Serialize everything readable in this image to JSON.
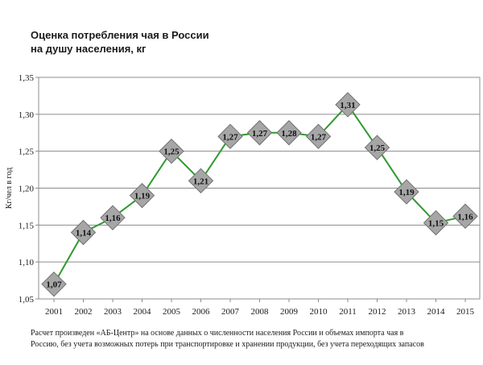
{
  "chart_data": {
    "type": "line",
    "title_line1": "Оценка потребления  чая в России",
    "title_line2": "на душу  населения, кг",
    "xlabel": "",
    "ylabel": "Кг/чел в год",
    "ylim": [
      1.05,
      1.35
    ],
    "yticks": [
      "1,05",
      "1,10",
      "1,15",
      "1,20",
      "1,25",
      "1,30",
      "1,35"
    ],
    "ytick_values": [
      1.05,
      1.1,
      1.15,
      1.2,
      1.25,
      1.3,
      1.35
    ],
    "categories": [
      "2001",
      "2002",
      "2003",
      "2004",
      "2005",
      "2006",
      "2007",
      "2008",
      "2009",
      "2010",
      "2011",
      "2012",
      "2013",
      "2014",
      "2015"
    ],
    "values": [
      1.07,
      1.14,
      1.16,
      1.19,
      1.25,
      1.21,
      1.27,
      1.275,
      1.275,
      1.27,
      1.313,
      1.255,
      1.195,
      1.153,
      1.162
    ],
    "labels": [
      "1,07",
      "1,14",
      "1,16",
      "1,19",
      "1,25",
      "1,21",
      "1,27",
      "1,27",
      "1,28",
      "1,27",
      "1,31",
      "1,25",
      "1,19",
      "1,15",
      "1,16"
    ],
    "grid": "horizontal",
    "line_color": "#2e9a2e",
    "marker_color": "#a6a6a6",
    "note_line1": "Расчет произведен «АБ-Центр» на основе данных о численности населения России и объемах импорта чая в",
    "note_line2": "Россию, без учета возможных потерь при транспортировке и хранении продукции, без учета переходящих запасов"
  }
}
